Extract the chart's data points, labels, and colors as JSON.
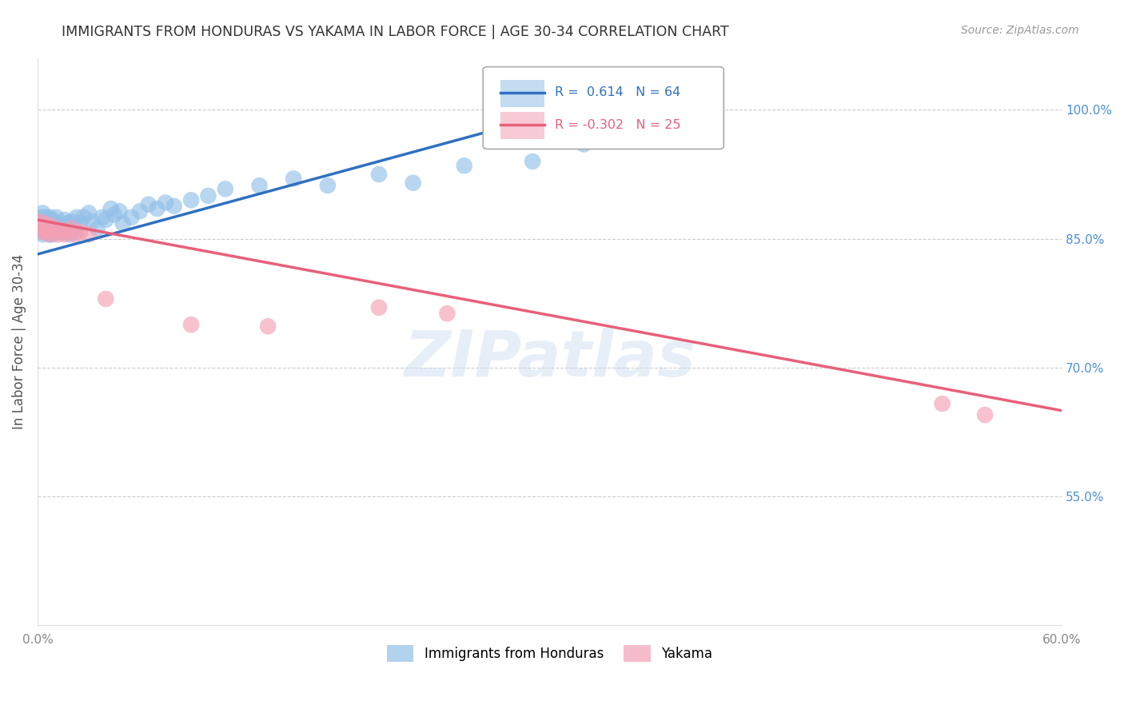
{
  "title": "IMMIGRANTS FROM HONDURAS VS YAKAMA IN LABOR FORCE | AGE 30-34 CORRELATION CHART",
  "source": "Source: ZipAtlas.com",
  "ylabel": "In Labor Force | Age 30-34",
  "xlim": [
    0.0,
    0.6
  ],
  "ylim": [
    0.4,
    1.06
  ],
  "xtick_positions": [
    0.0,
    0.1,
    0.2,
    0.3,
    0.4,
    0.5,
    0.6
  ],
  "xticklabels": [
    "0.0%",
    "",
    "",
    "",
    "",
    "",
    "60.0%"
  ],
  "ytick_positions": [
    0.55,
    0.7,
    0.85,
    1.0
  ],
  "ytick_labels": [
    "55.0%",
    "70.0%",
    "85.0%",
    "100.0%"
  ],
  "blue_R": 0.614,
  "blue_N": 64,
  "pink_R": -0.302,
  "pink_N": 25,
  "blue_color": "#92C0E8",
  "pink_color": "#F4A0B5",
  "blue_line_color": "#3070C0",
  "pink_line_color": "#E8607A",
  "watermark": "ZIPatlas",
  "blue_line_x0": 0.0,
  "blue_line_y0": 0.832,
  "blue_line_x1": 0.32,
  "blue_line_y1": 1.005,
  "pink_line_x0": 0.0,
  "pink_line_y0": 0.872,
  "pink_line_x1": 0.6,
  "pink_line_y1": 0.65,
  "blue_x": [
    0.001,
    0.002,
    0.002,
    0.003,
    0.003,
    0.003,
    0.004,
    0.004,
    0.004,
    0.005,
    0.005,
    0.005,
    0.006,
    0.006,
    0.007,
    0.007,
    0.007,
    0.008,
    0.008,
    0.009,
    0.009,
    0.01,
    0.01,
    0.011,
    0.012,
    0.013,
    0.014,
    0.015,
    0.016,
    0.017,
    0.018,
    0.019,
    0.02,
    0.021,
    0.022,
    0.023,
    0.025,
    0.027,
    0.03,
    0.032,
    0.035,
    0.038,
    0.04,
    0.043,
    0.045,
    0.048,
    0.05,
    0.055,
    0.06,
    0.065,
    0.07,
    0.075,
    0.08,
    0.09,
    0.1,
    0.11,
    0.13,
    0.15,
    0.17,
    0.2,
    0.22,
    0.25,
    0.29,
    0.32
  ],
  "blue_y": [
    0.87,
    0.862,
    0.875,
    0.855,
    0.868,
    0.88,
    0.862,
    0.872,
    0.858,
    0.865,
    0.875,
    0.858,
    0.87,
    0.862,
    0.868,
    0.855,
    0.875,
    0.86,
    0.872,
    0.865,
    0.855,
    0.87,
    0.858,
    0.875,
    0.862,
    0.868,
    0.858,
    0.865,
    0.872,
    0.86,
    0.868,
    0.855,
    0.87,
    0.862,
    0.858,
    0.875,
    0.868,
    0.875,
    0.88,
    0.87,
    0.862,
    0.875,
    0.872,
    0.885,
    0.878,
    0.882,
    0.868,
    0.875,
    0.882,
    0.89,
    0.885,
    0.892,
    0.888,
    0.895,
    0.9,
    0.908,
    0.912,
    0.92,
    0.912,
    0.925,
    0.915,
    0.935,
    0.94,
    0.96
  ],
  "pink_x": [
    0.001,
    0.002,
    0.003,
    0.004,
    0.005,
    0.006,
    0.007,
    0.008,
    0.01,
    0.012,
    0.014,
    0.016,
    0.018,
    0.02,
    0.022,
    0.025,
    0.03,
    0.04,
    0.09,
    0.135,
    0.2,
    0.24,
    0.005,
    0.53,
    0.555
  ],
  "pink_y": [
    0.87,
    0.862,
    0.858,
    0.868,
    0.862,
    0.858,
    0.855,
    0.865,
    0.862,
    0.855,
    0.86,
    0.855,
    0.858,
    0.862,
    0.855,
    0.858,
    0.855,
    0.78,
    0.75,
    0.748,
    0.77,
    0.763,
    0.862,
    0.658,
    0.645
  ]
}
